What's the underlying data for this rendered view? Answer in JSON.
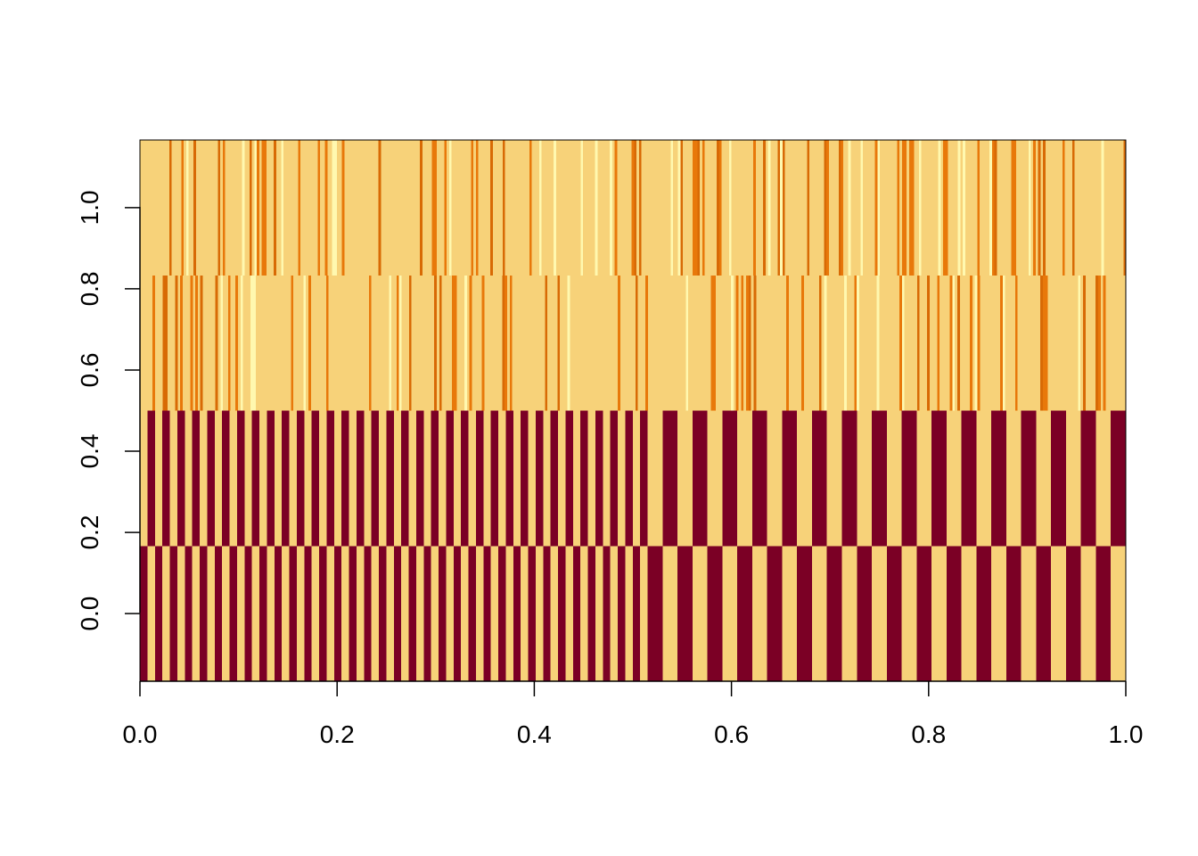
{
  "chart_data": {
    "type": "heatmap",
    "title": "",
    "xlabel": "",
    "ylabel": "",
    "xlim": [
      0,
      1
    ],
    "ylim": [
      -0.1667,
      1.1667
    ],
    "x_ticks": [
      "0.0",
      "0.2",
      "0.4",
      "0.6",
      "0.8",
      "1.0"
    ],
    "x_tick_values": [
      0.0,
      0.2,
      0.4,
      0.6,
      0.8,
      1.0
    ],
    "y_ticks": [
      "0.0",
      "0.2",
      "0.4",
      "0.6",
      "0.8",
      "1.0"
    ],
    "y_tick_values": [
      0.0,
      0.2,
      0.4,
      0.6,
      0.8,
      1.0
    ],
    "grid": false,
    "legend": "none",
    "palette": {
      "dark": "#7B0025",
      "mid": "#F7D279",
      "light": "#FFF8AF",
      "orange": "#E8780A",
      "accent": "#D86A05"
    },
    "rows": [
      {
        "row_index": 0,
        "y_center": 0.0,
        "pattern": "alternating",
        "segments": [
          {
            "x_from": 0.0,
            "x_to": 0.515,
            "columns": 68,
            "values": [
              "dark",
              "mid"
            ]
          },
          {
            "x_from": 0.515,
            "x_to": 1.0,
            "columns": 32,
            "values": [
              "dark",
              "mid"
            ]
          }
        ]
      },
      {
        "row_index": 1,
        "y_center": 0.3333,
        "pattern": "alternating",
        "segments": [
          {
            "x_from": 0.0,
            "x_to": 0.515,
            "columns": 68,
            "values": [
              "mid",
              "dark"
            ]
          },
          {
            "x_from": 0.515,
            "x_to": 1.0,
            "columns": 32,
            "values": [
              "mid",
              "dark"
            ]
          }
        ]
      },
      {
        "row_index": 2,
        "y_center": 0.6667,
        "pattern": "noise",
        "base": "mid",
        "value_counts": {
          "mid": 300,
          "light": 28,
          "orange": 42,
          "accent": 22
        }
      },
      {
        "row_index": 3,
        "y_center": 1.0,
        "pattern": "noise",
        "base": "mid",
        "value_counts": {
          "mid": 300,
          "light": 35,
          "orange": 45,
          "accent": 25
        }
      }
    ]
  }
}
